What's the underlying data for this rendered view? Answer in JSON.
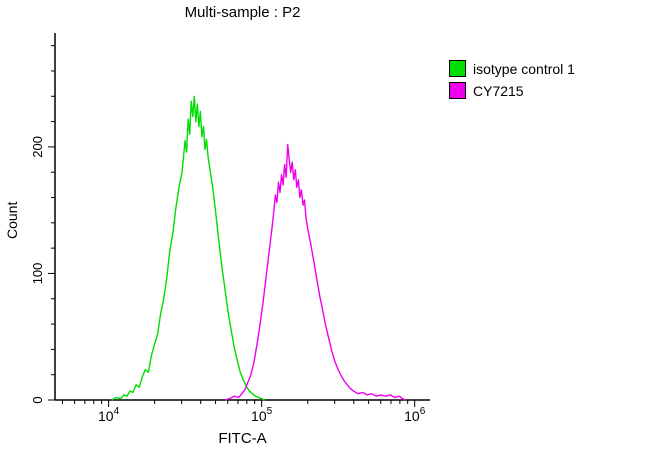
{
  "title": "Multi-sample : P2",
  "legend": {
    "items": [
      {
        "label": "isotype control 1",
        "color": "#00dd00"
      },
      {
        "label": "CY7215",
        "color": "#ee00ee"
      }
    ]
  },
  "chart_data": {
    "type": "line",
    "subtype": "flow-cytometry-overlay-histogram",
    "title": "Multi-sample : P2",
    "xlabel": "FITC-A",
    "ylabel": "Count",
    "x_scale": "log10",
    "x_domain_log": [
      3.65,
      6.1
    ],
    "y_domain": [
      0,
      290
    ],
    "grid": false,
    "legend_position": "right",
    "x_major_ticks": [
      {
        "value": 10000,
        "log": 4,
        "base": "10",
        "exp": "4"
      },
      {
        "value": 100000,
        "log": 5,
        "base": "10",
        "exp": "5"
      },
      {
        "value": 1000000,
        "log": 6,
        "base": "10",
        "exp": "6"
      }
    ],
    "y_major_ticks": [
      0,
      100,
      200
    ],
    "y_minor_step": 20,
    "series": [
      {
        "name": "isotype control 1",
        "color": "#00dd00",
        "peak_x_log": 4.56,
        "peak_count": 240,
        "points": [
          [
            4.02,
            0
          ],
          [
            4.05,
            2
          ],
          [
            4.08,
            1
          ],
          [
            4.1,
            4
          ],
          [
            4.12,
            3
          ],
          [
            4.14,
            7
          ],
          [
            4.16,
            6
          ],
          [
            4.18,
            12
          ],
          [
            4.2,
            10
          ],
          [
            4.22,
            18
          ],
          [
            4.24,
            24
          ],
          [
            4.26,
            22
          ],
          [
            4.28,
            35
          ],
          [
            4.3,
            44
          ],
          [
            4.32,
            52
          ],
          [
            4.34,
            68
          ],
          [
            4.36,
            80
          ],
          [
            4.38,
            96
          ],
          [
            4.4,
            118
          ],
          [
            4.42,
            132
          ],
          [
            4.44,
            152
          ],
          [
            4.46,
            168
          ],
          [
            4.48,
            180
          ],
          [
            4.5,
            205
          ],
          [
            4.51,
            196
          ],
          [
            4.52,
            222
          ],
          [
            4.53,
            210
          ],
          [
            4.54,
            236
          ],
          [
            4.55,
            224
          ],
          [
            4.56,
            240
          ],
          [
            4.57,
            220
          ],
          [
            4.58,
            234
          ],
          [
            4.59,
            216
          ],
          [
            4.6,
            228
          ],
          [
            4.61,
            208
          ],
          [
            4.62,
            216
          ],
          [
            4.63,
            198
          ],
          [
            4.64,
            206
          ],
          [
            4.65,
            192
          ],
          [
            4.66,
            184
          ],
          [
            4.68,
            168
          ],
          [
            4.7,
            148
          ],
          [
            4.72,
            126
          ],
          [
            4.74,
            106
          ],
          [
            4.76,
            88
          ],
          [
            4.78,
            70
          ],
          [
            4.8,
            56
          ],
          [
            4.82,
            42
          ],
          [
            4.84,
            32
          ],
          [
            4.86,
            22
          ],
          [
            4.88,
            16
          ],
          [
            4.9,
            11
          ],
          [
            4.92,
            7
          ],
          [
            4.94,
            5
          ],
          [
            4.96,
            3
          ],
          [
            4.98,
            2
          ],
          [
            5.0,
            1
          ],
          [
            5.02,
            0
          ]
        ]
      },
      {
        "name": "CY7215",
        "color": "#ee00ee",
        "peak_x_log": 5.17,
        "peak_count": 202,
        "points": [
          [
            4.76,
            0
          ],
          [
            4.79,
            1
          ],
          [
            4.82,
            3
          ],
          [
            4.85,
            2
          ],
          [
            4.87,
            5
          ],
          [
            4.89,
            8
          ],
          [
            4.91,
            14
          ],
          [
            4.93,
            20
          ],
          [
            4.95,
            30
          ],
          [
            4.97,
            44
          ],
          [
            4.99,
            60
          ],
          [
            5.01,
            78
          ],
          [
            5.03,
            98
          ],
          [
            5.05,
            118
          ],
          [
            5.07,
            138
          ],
          [
            5.08,
            150
          ],
          [
            5.09,
            162
          ],
          [
            5.1,
            156
          ],
          [
            5.11,
            172
          ],
          [
            5.12,
            164
          ],
          [
            5.13,
            178
          ],
          [
            5.14,
            170
          ],
          [
            5.15,
            186
          ],
          [
            5.16,
            176
          ],
          [
            5.17,
            202
          ],
          [
            5.18,
            190
          ],
          [
            5.19,
            180
          ],
          [
            5.2,
            188
          ],
          [
            5.21,
            174
          ],
          [
            5.22,
            182
          ],
          [
            5.23,
            168
          ],
          [
            5.24,
            174
          ],
          [
            5.25,
            160
          ],
          [
            5.26,
            166
          ],
          [
            5.27,
            154
          ],
          [
            5.28,
            158
          ],
          [
            5.29,
            144
          ],
          [
            5.3,
            136
          ],
          [
            5.32,
            124
          ],
          [
            5.34,
            110
          ],
          [
            5.36,
            96
          ],
          [
            5.38,
            82
          ],
          [
            5.4,
            70
          ],
          [
            5.42,
            58
          ],
          [
            5.44,
            48
          ],
          [
            5.46,
            38
          ],
          [
            5.48,
            30
          ],
          [
            5.5,
            24
          ],
          [
            5.52,
            19
          ],
          [
            5.54,
            15
          ],
          [
            5.56,
            12
          ],
          [
            5.58,
            9
          ],
          [
            5.6,
            7
          ],
          [
            5.63,
            5
          ],
          [
            5.66,
            6
          ],
          [
            5.69,
            4
          ],
          [
            5.72,
            5
          ],
          [
            5.75,
            3
          ],
          [
            5.78,
            4
          ],
          [
            5.81,
            3
          ],
          [
            5.84,
            4
          ],
          [
            5.87,
            2
          ],
          [
            5.9,
            3
          ],
          [
            5.92,
            1
          ],
          [
            5.94,
            0
          ]
        ]
      }
    ]
  }
}
